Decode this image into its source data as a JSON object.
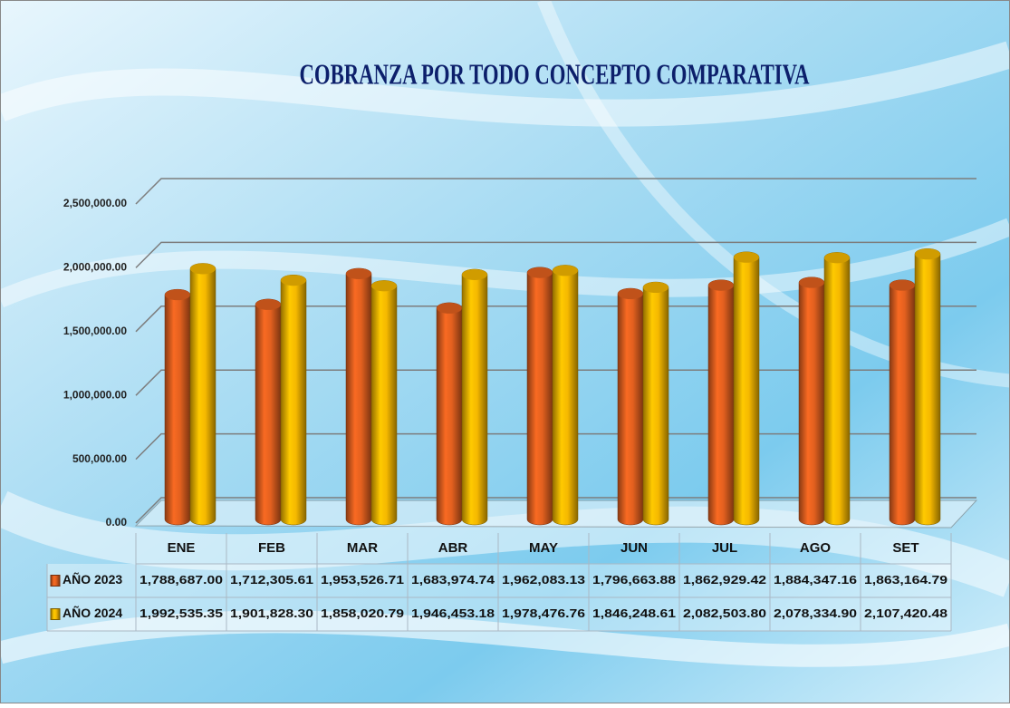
{
  "chart_data": {
    "type": "bar",
    "title": "COBRANZA POR TODO CONCEPTO COMPARATIVA",
    "categories": [
      "ENE",
      "FEB",
      "MAR",
      "ABR",
      "MAY",
      "JUN",
      "JUL",
      "AGO",
      "SET"
    ],
    "series": [
      {
        "name": "AÑO 2023",
        "color": "#e2601f",
        "values": [
          1788687.0,
          1712305.61,
          1953526.71,
          1683974.74,
          1962083.13,
          1796663.88,
          1862929.42,
          1884347.16,
          1863164.79
        ],
        "value_labels": [
          "1,788,687.00",
          "1,712,305.61",
          "1,953,526.71",
          "1,683,974.74",
          "1,962,083.13",
          "1,796,663.88",
          "1,862,929.42",
          "1,884,347.16",
          "1,863,164.79"
        ]
      },
      {
        "name": "AÑO 2024",
        "color": "#f5b800",
        "values": [
          1992535.35,
          1901828.3,
          1858020.79,
          1946453.18,
          1978476.76,
          1846248.61,
          2082503.8,
          2078334.9,
          2107420.48
        ],
        "value_labels": [
          "1,992,535.35",
          "1,901,828.30",
          "1,858,020.79",
          "1,946,453.18",
          "1,978,476.76",
          "1,846,248.61",
          "2,082,503.80",
          "2,078,334.90",
          "2,107,420.48"
        ]
      }
    ],
    "ylim": [
      0,
      2500000
    ],
    "yticks": [
      {
        "value": 0,
        "label": "0.00"
      },
      {
        "value": 500000,
        "label": "500,000.00"
      },
      {
        "value": 1000000,
        "label": "1,000,000.00"
      },
      {
        "value": 1500000,
        "label": "1,500,000.00"
      },
      {
        "value": 2000000,
        "label": "2,000,000.00"
      },
      {
        "value": 2500000,
        "label": "2,500,000.00"
      }
    ],
    "grid": true
  }
}
